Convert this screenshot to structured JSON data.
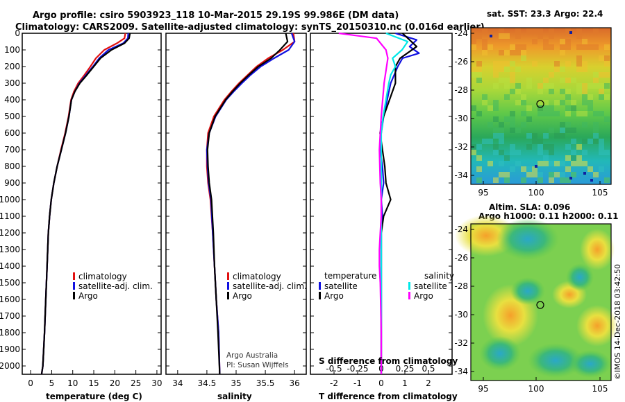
{
  "header": {
    "line1": "Argo profile: csiro 5903923_118 10-Mar-2015 29.19S 99.986E (DM data)",
    "line2": "Climatology: CARS2009. Satellite-adjusted climatology: synTS_20150310.nc (0.016d earlier)"
  },
  "colors": {
    "climatology": "#e01010",
    "satellite": "#1010e0",
    "argo": "#000000",
    "sat_salinity": "#00e8e8",
    "argo_salinity": "#ff00ff"
  },
  "chart_data": [
    {
      "type": "line",
      "id": "temperature",
      "xlabel": "temperature (deg C)",
      "ylabel": "",
      "xlim": [
        -2,
        31
      ],
      "ylim": [
        2050,
        0
      ],
      "xticks": [
        0,
        5,
        10,
        15,
        20,
        25,
        30
      ],
      "yticks": [
        0,
        100,
        200,
        300,
        400,
        500,
        600,
        700,
        800,
        900,
        1000,
        1100,
        1200,
        1300,
        1400,
        1500,
        1600,
        1700,
        1800,
        1900,
        2000
      ],
      "legend": [
        "climatology",
        "satellite-adj. clim.",
        "Argo"
      ],
      "series": [
        {
          "name": "climatology",
          "color": "#e01010",
          "x": [
            22.5,
            22.3,
            20.5,
            17.5,
            15.5,
            14.2,
            12.8,
            11.3,
            10.3,
            9.6,
            9.0,
            8.2,
            7.2,
            6.3,
            5.5,
            4.9,
            4.5,
            4.2,
            3.9,
            3.6,
            3.3,
            2.9,
            2.6
          ],
          "y": [
            0,
            30,
            60,
            100,
            150,
            200,
            250,
            300,
            350,
            400,
            500,
            600,
            700,
            800,
            900,
            1000,
            1100,
            1200,
            1400,
            1600,
            1800,
            2000,
            2050
          ]
        },
        {
          "name": "satellite-adj. clim.",
          "color": "#1010e0",
          "x": [
            23.2,
            23.1,
            22.0,
            18.5,
            16.3,
            14.8,
            13.2,
            11.6,
            10.5,
            9.7,
            9.1,
            8.3,
            7.3,
            6.3,
            5.5,
            4.9,
            4.5,
            4.2,
            3.9,
            3.6,
            3.3,
            2.9,
            2.6
          ],
          "y": [
            0,
            30,
            60,
            100,
            150,
            200,
            250,
            300,
            350,
            400,
            500,
            600,
            700,
            800,
            900,
            1000,
            1100,
            1200,
            1400,
            1600,
            1800,
            2000,
            2050
          ]
        },
        {
          "name": "Argo",
          "color": "#000000",
          "x": [
            23.6,
            23.4,
            22.3,
            19.2,
            16.6,
            15.0,
            13.4,
            11.7,
            10.5,
            9.7,
            9.1,
            8.3,
            7.3,
            6.3,
            5.5,
            4.9,
            4.5,
            4.2,
            3.9,
            3.6,
            3.3,
            2.9,
            2.6
          ],
          "y": [
            0,
            30,
            60,
            100,
            150,
            200,
            250,
            300,
            350,
            400,
            500,
            600,
            700,
            800,
            900,
            1000,
            1100,
            1200,
            1400,
            1600,
            1800,
            2000,
            2050
          ]
        }
      ]
    },
    {
      "type": "line",
      "id": "salinity",
      "xlabel": "salinity",
      "ylabel": "",
      "xlim": [
        33.8,
        36.2
      ],
      "ylim": [
        2050,
        0
      ],
      "xticks": [
        34,
        34.5,
        35,
        35.5,
        36
      ],
      "legend": [
        "climatology",
        "satellite-adj. clim.",
        "Argo"
      ],
      "annotation": [
        "Argo Australia",
        "PI: Susan Wijffels"
      ],
      "series": [
        {
          "name": "climatology",
          "color": "#e01010",
          "x": [
            35.98,
            36.0,
            35.8,
            35.55,
            35.35,
            35.2,
            35.05,
            34.92,
            34.8,
            34.62,
            34.52,
            34.5,
            34.5,
            34.52,
            34.56,
            34.6,
            34.63,
            34.66,
            34.7,
            34.72
          ],
          "y": [
            0,
            50,
            100,
            150,
            200,
            250,
            300,
            350,
            400,
            500,
            600,
            700,
            800,
            900,
            1000,
            1200,
            1400,
            1600,
            1800,
            2050
          ]
        },
        {
          "name": "satellite-adj. clim.",
          "color": "#1010e0",
          "x": [
            35.95,
            36.0,
            35.9,
            35.65,
            35.42,
            35.25,
            35.1,
            34.96,
            34.83,
            34.65,
            34.54,
            34.5,
            34.51,
            34.53,
            34.57,
            34.6,
            34.63,
            34.66,
            34.7,
            34.72
          ],
          "y": [
            0,
            50,
            100,
            150,
            200,
            250,
            300,
            350,
            400,
            500,
            600,
            700,
            800,
            900,
            1000,
            1200,
            1400,
            1600,
            1800,
            2050
          ]
        },
        {
          "name": "Argo",
          "color": "#000000",
          "x": [
            35.85,
            35.88,
            35.75,
            35.6,
            35.38,
            35.22,
            35.07,
            34.94,
            34.82,
            34.64,
            34.54,
            34.51,
            34.52,
            34.54,
            34.58,
            34.61,
            34.63,
            34.66,
            34.69,
            34.72
          ],
          "y": [
            0,
            50,
            100,
            150,
            200,
            250,
            300,
            350,
            400,
            500,
            600,
            700,
            800,
            900,
            1000,
            1200,
            1400,
            1600,
            1800,
            2050
          ]
        }
      ]
    },
    {
      "type": "line",
      "id": "difference",
      "xlabel": "T difference from climatology",
      "xlabel_top": "S difference from climatology",
      "xlim": [
        -3,
        3
      ],
      "ylim": [
        2050,
        0
      ],
      "xticks": [
        -2,
        -1,
        0,
        1,
        2
      ],
      "xticks_top": [
        -0.5,
        -0.25,
        0,
        0.25,
        0.5
      ],
      "xticklabels_top": [
        "-0.5",
        "-0.25",
        "0",
        "0.25",
        "0.5"
      ],
      "legend_temperature": {
        "title": "temperature",
        "items": [
          "satellite",
          "Argo"
        ]
      },
      "legend_salinity": {
        "title": "salinity",
        "items": [
          "satellite",
          "Argo"
        ]
      },
      "series": [
        {
          "name": "T satellite",
          "color": "#1010e0",
          "x": [
            0.6,
            1.5,
            1.2,
            1.6,
            0.9,
            0.7,
            0.4,
            0.25,
            0.1,
            0.0,
            -0.05,
            0.05,
            0.1,
            0.0,
            0.05,
            0.0,
            0.0,
            0.0,
            0.0,
            0.0
          ],
          "y": [
            0,
            40,
            80,
            120,
            150,
            200,
            300,
            400,
            500,
            600,
            700,
            800,
            900,
            1000,
            1100,
            1200,
            1400,
            1600,
            1800,
            2050
          ]
        },
        {
          "name": "T Argo",
          "color": "#000000",
          "x": [
            0.9,
            1.2,
            1.5,
            1.1,
            0.8,
            0.6,
            0.6,
            0.35,
            0.1,
            -0.05,
            0.05,
            0.15,
            0.2,
            0.4,
            0.1,
            0.0,
            0.0,
            0.0,
            0.0,
            0.0
          ],
          "y": [
            0,
            40,
            80,
            120,
            150,
            200,
            300,
            400,
            500,
            600,
            700,
            800,
            900,
            1000,
            1100,
            1200,
            1400,
            1600,
            1800,
            2050
          ]
        },
        {
          "name": "S satellite",
          "color": "#00e8e8",
          "x": [
            0.05,
            0.28,
            0.22,
            0.12,
            0.15,
            0.1,
            0.08,
            0.05,
            0.02,
            0.0,
            0.0,
            0.0,
            0.0,
            0.0,
            0.0,
            0.0,
            0.0,
            0.0
          ],
          "y": [
            0,
            50,
            100,
            150,
            200,
            250,
            300,
            400,
            500,
            600,
            800,
            1000,
            1200,
            1400,
            1600,
            1800,
            2000,
            2050
          ]
        },
        {
          "name": "S Argo",
          "color": "#ff00ff",
          "x": [
            -0.45,
            -0.05,
            0.05,
            0.07,
            0.03,
            0.0,
            -0.02,
            -0.01,
            0.0,
            0.0,
            -0.01,
            -0.02,
            -0.02,
            -0.01,
            0.0,
            0.0
          ],
          "y": [
            0,
            30,
            100,
            150,
            300,
            500,
            700,
            900,
            1000,
            1100,
            1200,
            1300,
            1400,
            1500,
            1800,
            2050
          ]
        }
      ]
    }
  ],
  "map_sst": {
    "title": "sat. SST: 23.3 Argo: 22.4",
    "xticks": [
      "95",
      "100",
      "105"
    ],
    "yticks": [
      "-24",
      "-26",
      "-28",
      "-30",
      "-32",
      "-34"
    ]
  },
  "map_sla": {
    "title1": "Altim. SLA: 0.096",
    "title2": "Argo h1000: 0.11 h2000: 0.11",
    "xticks": [
      "95",
      "100",
      "105"
    ],
    "yticks": [
      "-24",
      "-26",
      "-28",
      "-30",
      "-32",
      "-34"
    ]
  },
  "credit": "©IMOS 14-Dec-2018 03:42:50"
}
